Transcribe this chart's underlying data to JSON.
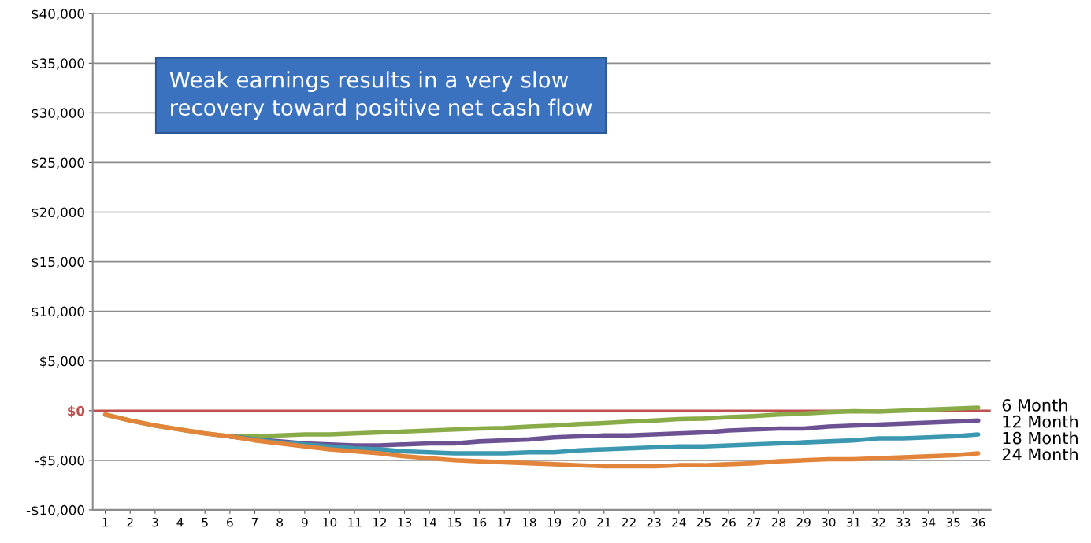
{
  "chart_data": {
    "type": "line",
    "categories": [
      "1",
      "2",
      "3",
      "4",
      "5",
      "6",
      "7",
      "8",
      "9",
      "10",
      "11",
      "12",
      "13",
      "14",
      "15",
      "16",
      "17",
      "18",
      "19",
      "20",
      "21",
      "22",
      "23",
      "24",
      "25",
      "26",
      "27",
      "28",
      "29",
      "30",
      "31",
      "32",
      "33",
      "34",
      "35",
      "36"
    ],
    "series": [
      {
        "name": "6 Month",
        "color": "#8aac48",
        "values": [
          -400,
          -1000,
          -1500,
          -1900,
          -2300,
          -2600,
          -2600,
          -2500,
          -2400,
          -2400,
          -2300,
          -2200,
          -2100,
          -2000,
          -1900,
          -1800,
          -1750,
          -1600,
          -1500,
          -1350,
          -1250,
          -1100,
          -1000,
          -850,
          -800,
          -650,
          -550,
          -400,
          -300,
          -150,
          -50,
          -100,
          0,
          100,
          200,
          300
        ]
      },
      {
        "name": "12 Month",
        "color": "#6c5193",
        "values": [
          null,
          null,
          null,
          null,
          null,
          -2600,
          -2900,
          -3100,
          -3300,
          -3400,
          -3500,
          -3500,
          -3400,
          -3300,
          -3300,
          -3100,
          -3000,
          -2900,
          -2700,
          -2600,
          -2500,
          -2500,
          -2400,
          -2300,
          -2200,
          -2000,
          -1900,
          -1800,
          -1800,
          -1600,
          -1500,
          -1400,
          -1300,
          -1200,
          -1100,
          -1000
        ]
      },
      {
        "name": "18 Month",
        "color": "#3c98b0",
        "values": [
          null,
          null,
          null,
          null,
          null,
          -2600,
          -2900,
          -3200,
          -3400,
          -3600,
          -3800,
          -3900,
          -4100,
          -4200,
          -4300,
          -4300,
          -4300,
          -4200,
          -4200,
          -4000,
          -3900,
          -3800,
          -3700,
          -3600,
          -3600,
          -3500,
          -3400,
          -3300,
          -3200,
          -3100,
          -3000,
          -2800,
          -2800,
          -2700,
          -2600,
          -2400
        ]
      },
      {
        "name": "24 Month",
        "color": "#e2843a",
        "values": [
          -400,
          -1000,
          -1500,
          -1900,
          -2300,
          -2600,
          -3000,
          -3300,
          -3600,
          -3900,
          -4100,
          -4300,
          -4600,
          -4800,
          -5000,
          -5100,
          -5200,
          -5300,
          -5400,
          -5500,
          -5600,
          -5600,
          -5600,
          -5500,
          -5500,
          -5400,
          -5300,
          -5100,
          -5000,
          -4900,
          -4900,
          -4800,
          -4700,
          -4600,
          -4500,
          -4300
        ]
      }
    ],
    "ylim": [
      -10000,
      40000
    ],
    "yticks": [
      {
        "value": -10000,
        "label": "-$10,000"
      },
      {
        "value": -5000,
        "label": "-$5,000"
      },
      {
        "value": 0,
        "label": "$0"
      },
      {
        "value": 5000,
        "label": "$5,000"
      },
      {
        "value": 10000,
        "label": "$10,000"
      },
      {
        "value": 15000,
        "label": "$15,000"
      },
      {
        "value": 20000,
        "label": "$20,000"
      },
      {
        "value": 25000,
        "label": "$25,000"
      },
      {
        "value": 30000,
        "label": "$30,000"
      },
      {
        "value": 35000,
        "label": "$35,000"
      },
      {
        "value": 40000,
        "label": "$40,000"
      }
    ],
    "ref_lines": [
      {
        "axis": "y",
        "value": 0,
        "label": null,
        "color": "#c0504d"
      }
    ],
    "annotations": [
      "Weak earnings results in a very slow\nrecovery toward positive net cash flow"
    ],
    "grid": "y",
    "legend": false,
    "marker": "none",
    "line_style": "solid"
  }
}
